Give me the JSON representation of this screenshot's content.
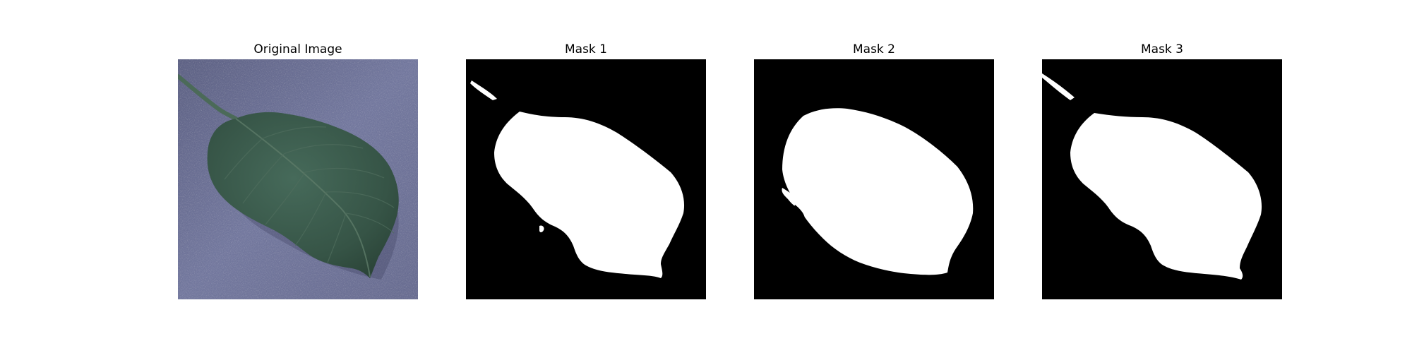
{
  "figure": {
    "panels": [
      {
        "title": "Original Image",
        "kind": "photo-leaf"
      },
      {
        "title": "Mask 1",
        "kind": "binary-mask"
      },
      {
        "title": "Mask 2",
        "kind": "binary-mask"
      },
      {
        "title": "Mask 3",
        "kind": "binary-mask"
      }
    ],
    "colors": {
      "background": "#ffffff",
      "mask_foreground": "#ffffff",
      "mask_background": "#000000",
      "leaf": "#3a5a4c",
      "surface": "#6f7397"
    }
  }
}
